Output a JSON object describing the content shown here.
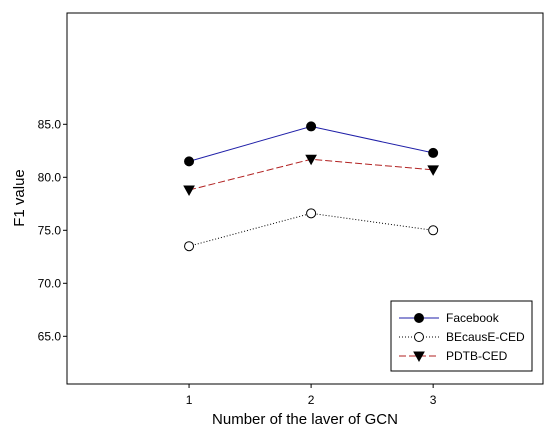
{
  "chart_data": {
    "type": "line",
    "title": "",
    "xlabel": "Number of the laver of GCN",
    "ylabel": "F1 value",
    "x": [
      1,
      2,
      3
    ],
    "xlim": [
      0,
      3.9
    ],
    "ylim": [
      60.5,
      95.5
    ],
    "xticks": [
      "1",
      "2",
      "3"
    ],
    "yticks": [
      "65.0",
      "70.0",
      "75.0",
      "80.0",
      "85.0"
    ],
    "ytick_values": [
      65,
      70,
      75,
      80,
      85
    ],
    "grid": false,
    "legend_position": "bottom-right",
    "series": [
      {
        "name": "Facebook",
        "values": [
          81.5,
          84.8,
          82.3
        ],
        "color": "#1f1fa8",
        "line_style": "solid",
        "marker": "filled-circle"
      },
      {
        "name": "BEcausE-CED",
        "values": [
          73.5,
          76.6,
          75.0
        ],
        "color": "#000000",
        "line_style": "dotted",
        "marker": "open-circle"
      },
      {
        "name": "PDTB-CED",
        "values": [
          78.8,
          81.7,
          80.7
        ],
        "color": "#b22222",
        "line_style": "dashed",
        "marker": "filled-triangle-down"
      }
    ]
  }
}
